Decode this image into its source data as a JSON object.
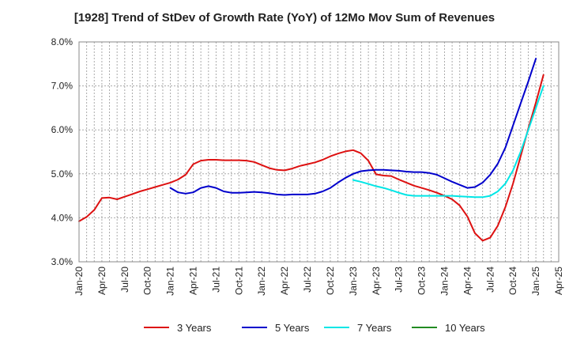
{
  "chart_data": {
    "type": "line",
    "title": "[1928]  Trend of StDev of Growth Rate (YoY) of 12Mo Mov Sum of Revenues",
    "xlabel": "",
    "ylabel": "",
    "ylim": [
      3.0,
      8.0
    ],
    "y_ticks": [
      "3.0%",
      "4.0%",
      "5.0%",
      "6.0%",
      "7.0%",
      "8.0%"
    ],
    "x_ticks": [
      "Jan-20",
      "Apr-20",
      "Jul-20",
      "Oct-20",
      "Jan-21",
      "Apr-21",
      "Jul-21",
      "Oct-21",
      "Jan-22",
      "Apr-22",
      "Jul-22",
      "Oct-22",
      "Jan-23",
      "Apr-23",
      "Jul-23",
      "Oct-23",
      "Jan-24",
      "Apr-24",
      "Jul-24",
      "Oct-24",
      "Jan-25",
      "Apr-25"
    ],
    "grid": true,
    "legend_position": "bottom",
    "series": [
      {
        "name": "3 Years",
        "color": "#dd1111",
        "start_month_index": 0,
        "values": [
          3.92,
          4.02,
          4.18,
          4.45,
          4.46,
          4.42,
          4.48,
          4.54,
          4.6,
          4.65,
          4.7,
          4.75,
          4.8,
          4.87,
          4.98,
          5.22,
          5.3,
          5.32,
          5.32,
          5.31,
          5.31,
          5.31,
          5.3,
          5.27,
          5.2,
          5.13,
          5.09,
          5.08,
          5.12,
          5.18,
          5.22,
          5.26,
          5.32,
          5.4,
          5.46,
          5.51,
          5.54,
          5.47,
          5.3,
          4.99,
          4.96,
          4.95,
          4.87,
          4.8,
          4.73,
          4.68,
          4.63,
          4.57,
          4.5,
          4.42,
          4.28,
          4.03,
          3.65,
          3.48,
          3.55,
          3.82,
          4.25,
          4.78,
          5.4,
          6.03,
          6.62,
          7.25
        ]
      },
      {
        "name": "5 Years",
        "color": "#0000cc",
        "start_month_index": 12,
        "values": [
          4.68,
          4.58,
          4.55,
          4.58,
          4.68,
          4.72,
          4.68,
          4.6,
          4.57,
          4.57,
          4.58,
          4.59,
          4.58,
          4.56,
          4.53,
          4.52,
          4.53,
          4.53,
          4.53,
          4.55,
          4.6,
          4.68,
          4.8,
          4.91,
          5.0,
          5.06,
          5.08,
          5.09,
          5.09,
          5.08,
          5.07,
          5.05,
          5.04,
          5.04,
          5.02,
          4.98,
          4.9,
          4.82,
          4.75,
          4.68,
          4.7,
          4.8,
          4.98,
          5.23,
          5.6,
          6.1,
          6.6,
          7.1,
          7.62
        ]
      },
      {
        "name": "7 Years",
        "color": "#00e6e6",
        "start_month_index": 36,
        "values": [
          4.86,
          4.82,
          4.77,
          4.72,
          4.68,
          4.63,
          4.57,
          4.52,
          4.5,
          4.5,
          4.5,
          4.5,
          4.5,
          4.5,
          4.49,
          4.48,
          4.47,
          4.47,
          4.5,
          4.6,
          4.78,
          5.08,
          5.5,
          6.0,
          6.5,
          7.0
        ]
      },
      {
        "name": "10 Years",
        "color": "#228b22",
        "start_month_index": 0,
        "values": []
      }
    ]
  }
}
